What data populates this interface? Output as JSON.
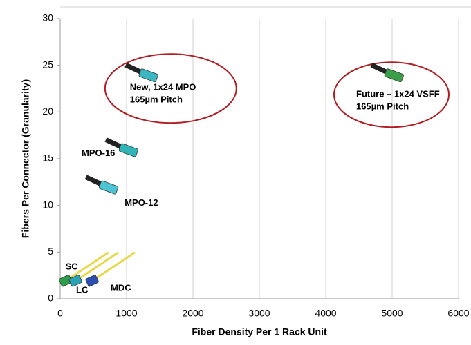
{
  "chart_data": {
    "type": "scatter",
    "x_label": "Fiber Density Per 1 Rack Unit",
    "y_label": "Fibers Per Connector (Granularity)",
    "xlim": [
      0,
      6000
    ],
    "xticks": [
      0,
      1000,
      2000,
      3000,
      4000,
      5000,
      6000
    ],
    "ylim": [
      0,
      30
    ],
    "yticks": [
      0,
      5,
      10,
      15,
      20,
      25,
      30
    ],
    "grid": "x",
    "points": [
      {
        "label": [
          "SC"
        ],
        "x": 100,
        "y": 2,
        "color": "#2e9e4a"
      },
      {
        "label": [
          "LC"
        ],
        "x": 250,
        "y": 2,
        "color": "#2aa3b8"
      },
      {
        "label": [
          "MDC"
        ],
        "x": 500,
        "y": 2,
        "color": "#2a4fb0"
      },
      {
        "label": [
          "MPO-12"
        ],
        "x": 700,
        "y": 12,
        "color": "#4cc4d4"
      },
      {
        "label": [
          "MPO-16"
        ],
        "x": 1000,
        "y": 16,
        "color": "#2fb5b8"
      },
      {
        "label": [
          "New, 1x24 MPO",
          "165µm Pitch"
        ],
        "x": 1300,
        "y": 24,
        "color": "#3cb6c0",
        "circled": true
      },
      {
        "label": [
          "Future – 1x24 VSFF",
          "165µm Pitch"
        ],
        "x": 5000,
        "y": 24,
        "color": "#3a9e48",
        "circled": true
      }
    ],
    "circle_color": "#b01e23"
  }
}
